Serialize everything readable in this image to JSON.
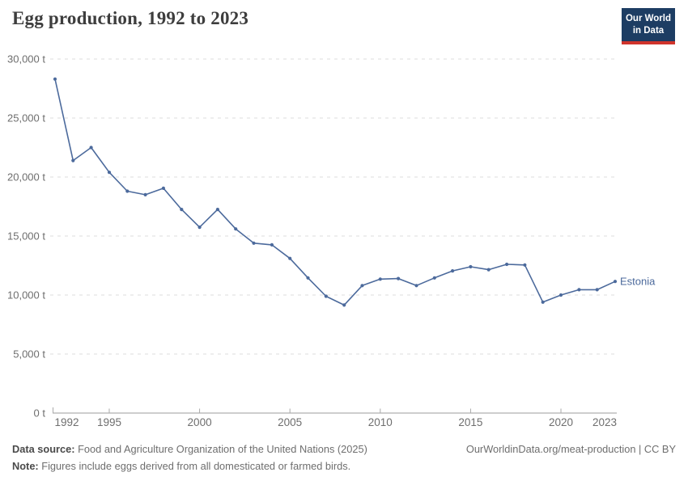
{
  "header": {
    "title": "Egg production, 1992 to 2023"
  },
  "logo": {
    "line1": "Our World",
    "line2": "in Data",
    "background": "#1d3d63",
    "underline": "#d0342c"
  },
  "chart_data": {
    "type": "line",
    "title": "Egg production, 1992 to 2023",
    "unit": "t",
    "xlabel": "",
    "ylabel": "",
    "xlim": [
      1992,
      2023
    ],
    "ylim": [
      0,
      30000
    ],
    "grid": "horizontal-dashed",
    "legend_position": "end-of-line",
    "entity_label": "Estonia",
    "x": [
      1992,
      1993,
      1994,
      1995,
      1996,
      1997,
      1998,
      1999,
      2000,
      2001,
      2002,
      2003,
      2004,
      2005,
      2006,
      2007,
      2008,
      2009,
      2010,
      2011,
      2012,
      2013,
      2014,
      2015,
      2016,
      2017,
      2018,
      2019,
      2020,
      2021,
      2022,
      2023
    ],
    "series": [
      {
        "name": "Estonia",
        "color": "#4c6a9c",
        "values": [
          28300,
          21400,
          22500,
          20400,
          18800,
          18500,
          19050,
          17250,
          15750,
          17250,
          15600,
          14400,
          14250,
          13100,
          11450,
          9900,
          9150,
          10800,
          11350,
          11400,
          10800,
          11450,
          12050,
          12400,
          12150,
          12600,
          12550,
          9400,
          10000,
          10450,
          10450,
          11150
        ]
      }
    ],
    "x_ticks": [
      1992,
      1995,
      2000,
      2005,
      2010,
      2015,
      2020,
      2023
    ],
    "y_ticks": [
      0,
      5000,
      10000,
      15000,
      20000,
      25000,
      30000
    ],
    "y_tick_labels": [
      "0 t",
      "5,000 t",
      "10,000 t",
      "15,000 t",
      "20,000 t",
      "25,000 t",
      "30,000 t"
    ]
  },
  "footer": {
    "source_label": "Data source:",
    "source_text": "Food and Agriculture Organization of the United Nations (2025)",
    "note_label": "Note:",
    "note_text": "Figures include eggs derived from all domesticated or farmed birds.",
    "link": "OurWorldinData.org/meat-production | CC BY"
  },
  "colors": {
    "axis_text": "#6e6e6e",
    "gridline": "#dcdcdc",
    "axis_line": "#9e9e9e",
    "tick_mark": "#a9a9a9",
    "title": "#3d3d3d",
    "line": "#4c6a9c"
  }
}
